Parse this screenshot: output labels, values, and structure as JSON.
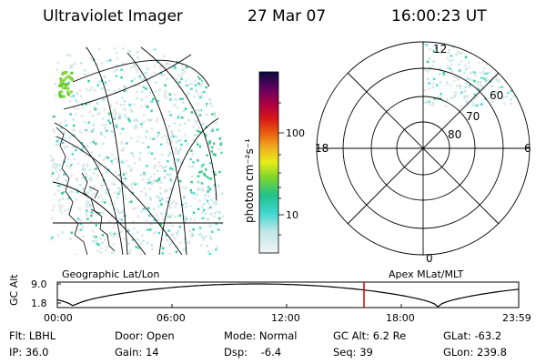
{
  "header": {
    "title": "Ultraviolet Imager",
    "date": "27 Mar 07",
    "time": "16:00:23 UT"
  },
  "colorbar": {
    "unit_label": "photon cm⁻²s⁻¹",
    "ticks": [
      "100",
      "10"
    ]
  },
  "polar_plot": {
    "hour_labels": [
      "12",
      "18",
      "6",
      "0"
    ],
    "lat_labels": [
      "60",
      "70",
      "80"
    ]
  },
  "projections": {
    "left_label": "Geographic Lat/Lon",
    "right_label": "Apex MLat/MLT"
  },
  "altitude_plot": {
    "axis_label": "GC Alt",
    "y_ticks": [
      "9.0",
      "1.8"
    ],
    "time_ticks": [
      "00:00",
      "06:00",
      "12:00",
      "18:00",
      "23:59"
    ],
    "marker_color": "#d40000"
  },
  "info": {
    "filter": "Flt: LBHL",
    "ip": "IP: 36.0",
    "door": "Door: Open",
    "gain": "Gain: 14",
    "mode": "Mode: Normal",
    "dsp": "Dsp:    -6.4",
    "gc_alt": "GC Alt: 6.2 Re",
    "seq": "Seq: 39",
    "glat": "GLat: -63.2",
    "glon": "GLon: 239.8"
  }
}
